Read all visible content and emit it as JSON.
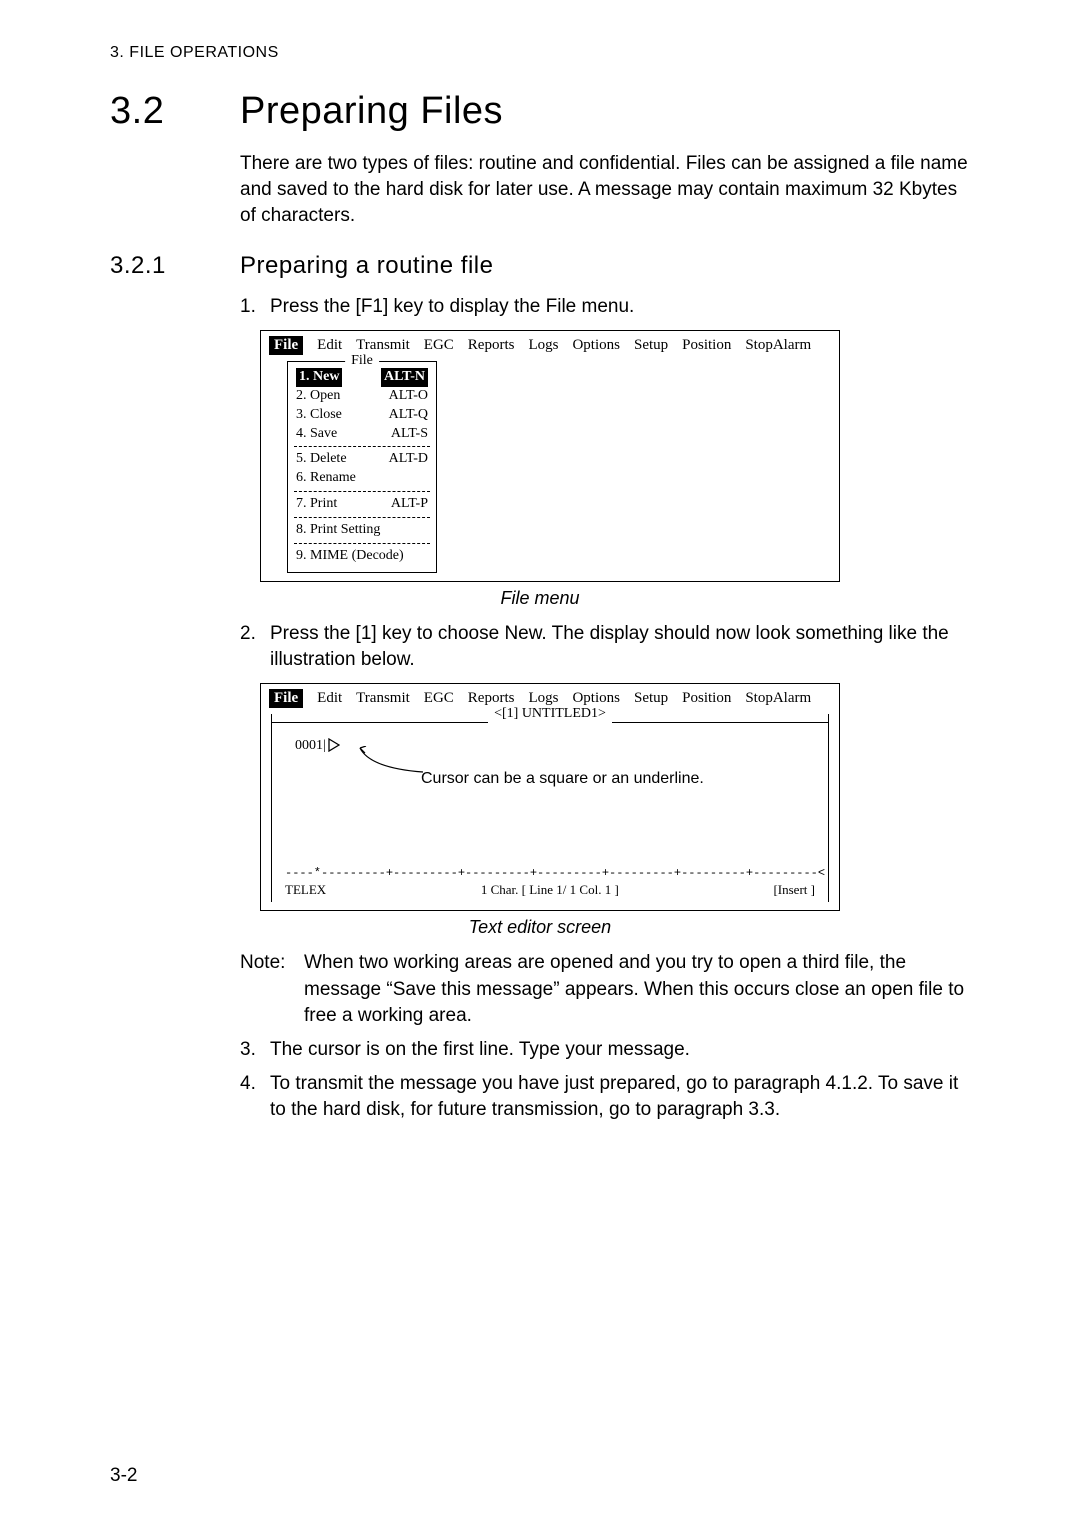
{
  "header": "3. FILE OPERATIONS",
  "h1_num": "3.2",
  "h1_title": "Preparing Files",
  "intro": "There are two types of files: routine and confidential. Files can be assigned a file name and saved to the hard disk for later use. A message may contain maximum 32 Kbytes of characters.",
  "h2_num": "3.2.1",
  "h2_title": "Preparing a routine file",
  "step1": "Press the [F1] key to display the File menu.",
  "menubar": {
    "active": "File",
    "items": [
      "Edit",
      "Transmit",
      "EGC",
      "Reports",
      "Logs",
      "Options",
      "Setup",
      "Position",
      "StopAlarm"
    ]
  },
  "file_menu": {
    "legend": "File",
    "rows": [
      {
        "a": "1. New",
        "b": "ALT-N",
        "sel": true
      },
      {
        "a": "2. Open",
        "b": "ALT-O"
      },
      {
        "a": "3. Close",
        "b": "ALT-Q"
      },
      {
        "a": "4. Save",
        "b": "ALT-S"
      },
      "sep",
      {
        "a": "5. Delete",
        "b": "ALT-D"
      },
      {
        "a": "6. Rename",
        "b": ""
      },
      "sep",
      {
        "a": "7. Print",
        "b": "ALT-P"
      },
      "sep",
      {
        "a": "8. Print Setting",
        "b": ""
      },
      "sep",
      {
        "a": "9. MIME (Decode)",
        "b": ""
      }
    ]
  },
  "caption1": "File menu",
  "step2": "Press the [1] key to choose New. The display should now look something like the illustration below.",
  "editor": {
    "title": "<[1] UNTITLED1>",
    "line_no": "0001|",
    "cursor_note": "Cursor can be a square or an underline.",
    "ruler": "----*---------+---------+---------+---------+---------+---------+---------<",
    "status_left": "TELEX",
    "status_mid": "1 Char.     [ Line     1/     1   Col.     1 ]",
    "status_right": "[Insert       ]"
  },
  "caption2": "Text editor screen",
  "note_label": "Note:",
  "note_text": "When two working areas are opened and you try to open a third file, the message “Save this message” appears. When this occurs close an open file to free a working area.",
  "step3": "The cursor is on the first line. Type your message.",
  "step4": "To transmit the message you have just prepared, go to paragraph 4.1.2. To save it to the hard disk, for future transmission, go to paragraph 3.3.",
  "page_no": "3-2"
}
